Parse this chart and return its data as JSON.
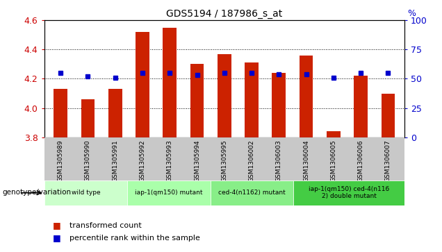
{
  "title": "GDS5194 / 187986_s_at",
  "samples": [
    "GSM1305989",
    "GSM1305990",
    "GSM1305991",
    "GSM1305992",
    "GSM1305993",
    "GSM1305994",
    "GSM1305995",
    "GSM1306002",
    "GSM1306003",
    "GSM1306004",
    "GSM1306005",
    "GSM1306006",
    "GSM1306007"
  ],
  "red_values": [
    4.13,
    4.06,
    4.13,
    4.52,
    4.55,
    4.3,
    4.37,
    4.31,
    4.24,
    4.36,
    3.84,
    4.22,
    4.1
  ],
  "blue_values": [
    55,
    52,
    51,
    55,
    55,
    53,
    55,
    55,
    54,
    54,
    51,
    55,
    55
  ],
  "ymin": 3.8,
  "ymax": 4.6,
  "y2min": 0,
  "y2max": 100,
  "yticks": [
    3.8,
    4.0,
    4.2,
    4.4,
    4.6
  ],
  "y2ticks": [
    0,
    25,
    50,
    75,
    100
  ],
  "bar_color": "#cc2200",
  "marker_color": "#0000cc",
  "groups": [
    {
      "label": "wild type",
      "start": 0,
      "end": 3,
      "color": "#ccffcc"
    },
    {
      "label": "iap-1(qm150) mutant",
      "start": 3,
      "end": 6,
      "color": "#aaffaa"
    },
    {
      "label": "ced-4(n1162) mutant",
      "start": 6,
      "end": 9,
      "color": "#88ee88"
    },
    {
      "label": "iap-1(qm150) ced-4(n116\n2) double mutant",
      "start": 9,
      "end": 13,
      "color": "#44cc44"
    }
  ],
  "bar_color_r": "#cc2200",
  "marker_color_b": "#0000cc",
  "y_tick_color": "#cc0000",
  "y2_tick_color": "#0000cc",
  "legend_items": [
    {
      "color": "#cc2200",
      "label": "transformed count"
    },
    {
      "color": "#0000cc",
      "label": "percentile rank within the sample"
    }
  ],
  "group_label": "genotype/variation",
  "gray_bg": "#c8c8c8",
  "tick_label_fontsize": 7,
  "bar_width": 0.5
}
